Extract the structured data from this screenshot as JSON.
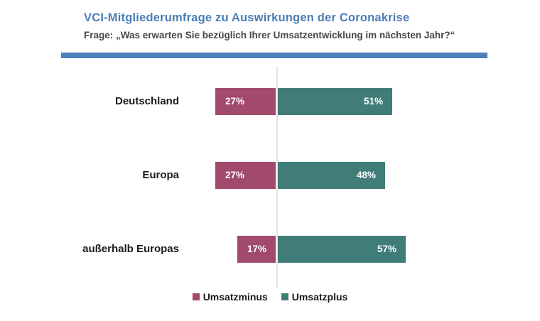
{
  "header": {
    "title": "VCI-Mitgliederumfrage zu Auswirkungen der Coronakrise",
    "subtitle": "Frage: „Was erwarten Sie bezüglich Ihrer Umsatzentwicklung im nächsten Jahr?“"
  },
  "chart_data": {
    "type": "bar",
    "variant": "horizontal-diverging-stacked",
    "title": "VCI-Mitgliederumfrage zu Auswirkungen der Coronakrise",
    "subtitle": "Frage: „Was erwarten Sie bezüglich Ihrer Umsatzentwicklung im nächsten Jahr?“",
    "categories": [
      "Deutschland",
      "Europa",
      "außerhalb Europas"
    ],
    "series": [
      {
        "name": "Umsatzminus",
        "direction": "left",
        "color": "#A14A6E",
        "values": [
          27,
          27,
          17
        ]
      },
      {
        "name": "Umsatzplus",
        "direction": "right",
        "color": "#417D78",
        "values": [
          51,
          48,
          57
        ]
      }
    ],
    "value_suffix": "%",
    "value_labels_shown": true,
    "legend_position": "bottom",
    "grid": false,
    "zero_axis_line": true,
    "xlim": [
      -30,
      60
    ]
  },
  "colors": {
    "title_text": "#4A7DB5",
    "divider_bar": "#4D80B8",
    "subtitle_text": "#4A4644",
    "category_text": "#1B1B1B",
    "value_text": "#FFFFFF",
    "zero_axis_line": "#E4E4E4",
    "background": "#FFFFFF"
  }
}
